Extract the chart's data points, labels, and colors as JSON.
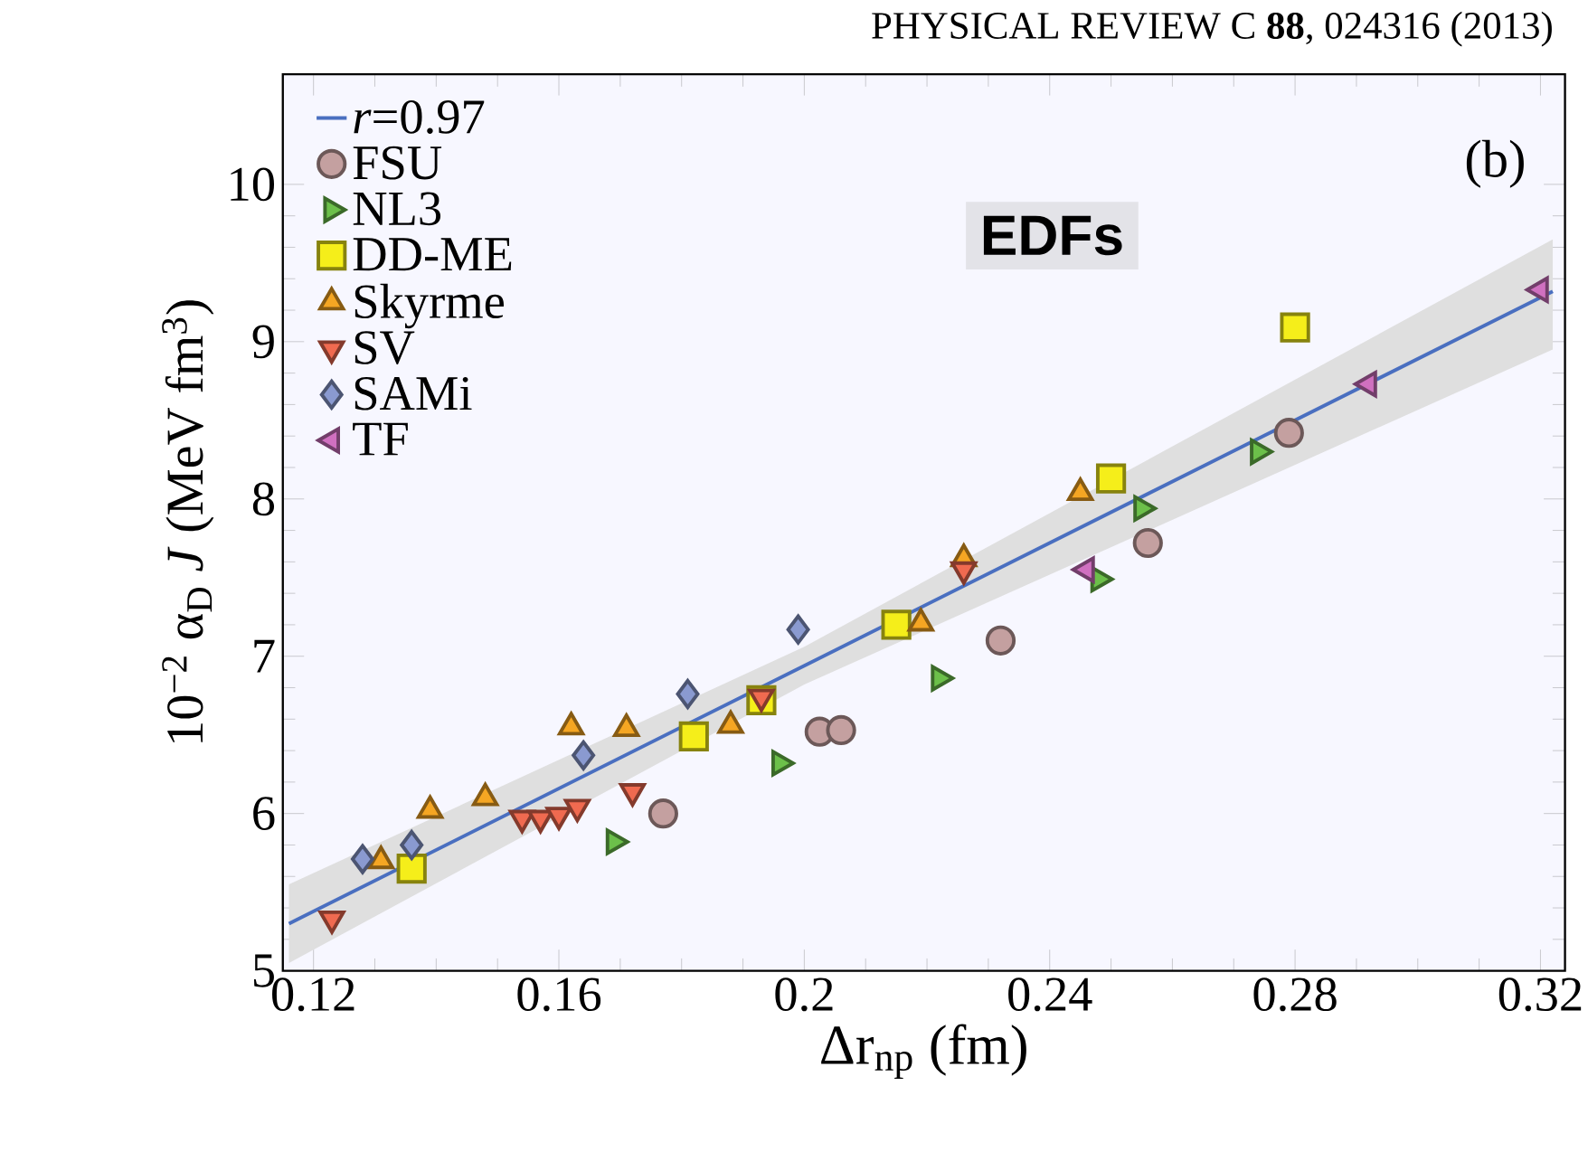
{
  "chart_data": {
    "type": "scatter",
    "title": "PHYSICAL REVIEW C **88**, 024316 (2013)",
    "xlabel": "Δr$_{np}$   (fm)",
    "ylabel": "10$^{−2}$ α$_{D}$ *J*  (MeV fm$^{3}$)",
    "annotations": [
      "(b)",
      "EDFs"
    ],
    "xlim": [
      0.115,
      0.324
    ],
    "ylim": [
      5,
      10.7
    ],
    "xticks": [
      0.12,
      0.16,
      0.2,
      0.24,
      0.28,
      0.32
    ],
    "yticks": [
      5,
      6,
      7,
      8,
      9,
      10
    ],
    "legend": "top left",
    "grid": false,
    "series": [
      {
        "name": "*r*=0.97",
        "type": "line",
        "color": "#4a6fc0",
        "line_style": "solid",
        "marker": "none",
        "x": [
          0.116,
          0.2,
          0.322
        ],
        "values": [
          5.3,
          6.94,
          9.32
        ],
        "lower": [
          5.05,
          6.82,
          8.95
        ],
        "upper": [
          5.55,
          7.06,
          9.65
        ]
      },
      {
        "name": "FSU",
        "marker": "circle",
        "color": "#c4a0a0",
        "x": [
          0.177,
          0.2025,
          0.206,
          0.232,
          0.256,
          0.279
        ],
        "values": [
          6.0,
          6.52,
          6.53,
          7.1,
          7.72,
          8.42
        ]
      },
      {
        "name": "NL3",
        "marker": "triangle-right",
        "color": "#6cc04a",
        "x": [
          0.169,
          0.196,
          0.222,
          0.248,
          0.255,
          0.274
        ],
        "values": [
          5.82,
          6.32,
          6.86,
          7.49,
          7.94,
          8.3
        ]
      },
      {
        "name": "DD-ME",
        "marker": "square",
        "color": "#f5ee1a",
        "x": [
          0.136,
          0.182,
          0.193,
          0.215,
          0.25,
          0.28
        ],
        "values": [
          5.65,
          6.49,
          6.72,
          7.2,
          8.13,
          9.09
        ]
      },
      {
        "name": "Skyrme",
        "marker": "triangle",
        "color": "#f5a623",
        "x": [
          0.131,
          0.139,
          0.148,
          0.162,
          0.171,
          0.188,
          0.219,
          0.226,
          0.245
        ],
        "values": [
          5.7,
          6.02,
          6.1,
          6.55,
          6.54,
          6.56,
          7.21,
          7.62,
          8.04
        ]
      },
      {
        "name": "SV",
        "marker": "triangle-down",
        "color": "#f06a50",
        "x": [
          0.123,
          0.154,
          0.157,
          0.16,
          0.163,
          0.172,
          0.193,
          0.226
        ],
        "values": [
          5.33,
          5.97,
          5.97,
          5.99,
          6.04,
          6.14,
          6.74,
          7.55
        ]
      },
      {
        "name": "SAMi",
        "marker": "diamond",
        "color": "#8a9ad0",
        "x": [
          0.128,
          0.136,
          0.164,
          0.181,
          0.199
        ],
        "values": [
          5.71,
          5.8,
          6.37,
          6.76,
          7.17
        ]
      },
      {
        "name": "TF",
        "marker": "triangle-left",
        "color": "#d070c0",
        "x": [
          0.246,
          0.292,
          0.32
        ],
        "values": [
          7.55,
          8.73,
          9.33
        ]
      }
    ]
  }
}
